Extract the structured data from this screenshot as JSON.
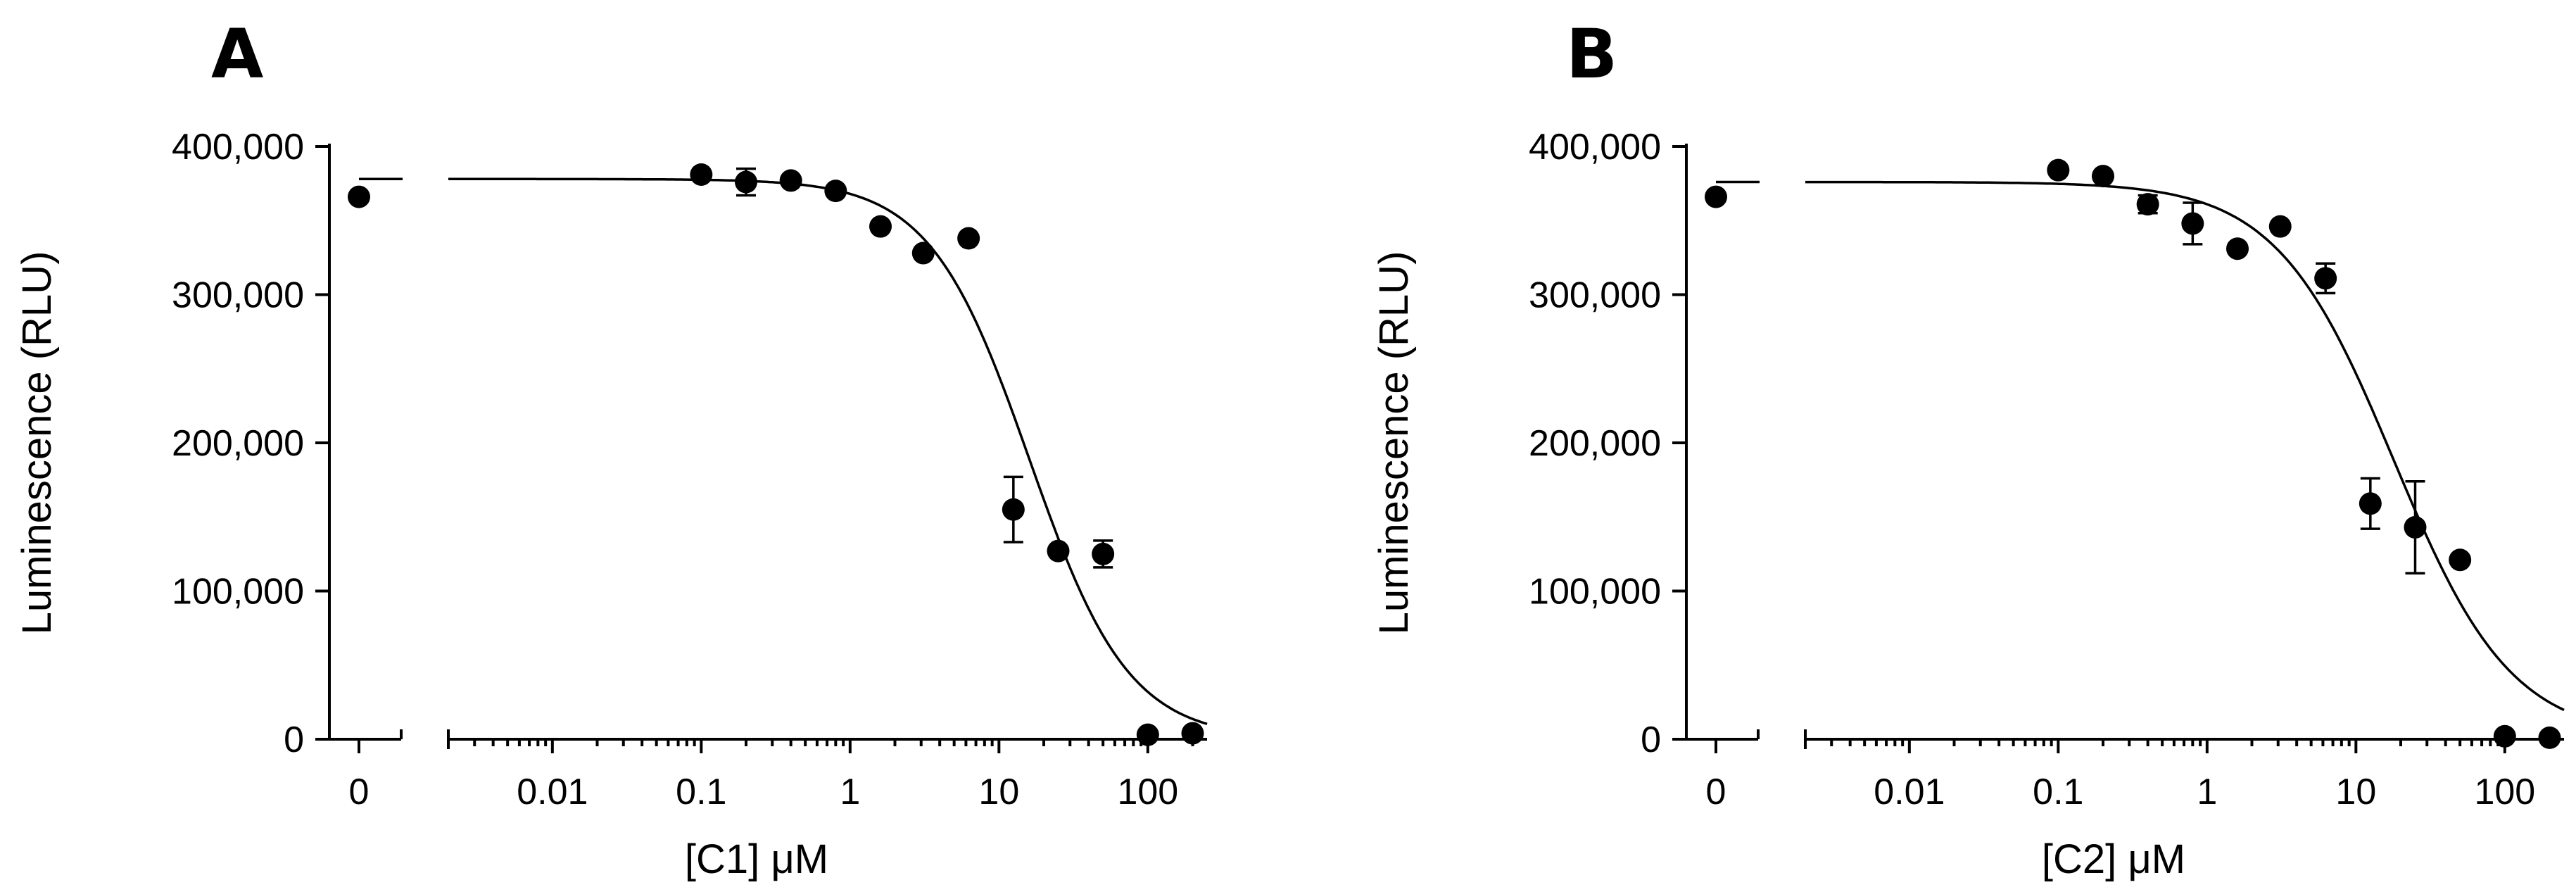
{
  "chart_data": [
    {
      "panel": "A",
      "type": "scatter",
      "title": "",
      "xlabel": "[C1] μM",
      "ylabel": "Luminescence (RLU)",
      "xscale": "log",
      "xlim": [
        0.002,
        250
      ],
      "ylim": [
        0,
        400000
      ],
      "yticks": [
        0,
        100000,
        200000,
        300000,
        400000
      ],
      "ytick_labels": [
        "0",
        "100,000",
        "200,000",
        "300,000",
        "400,000"
      ],
      "xticks": [
        0.01,
        0.1,
        1,
        10,
        100
      ],
      "xtick_labels": [
        "0.01",
        "0.1",
        "1",
        "10",
        "100"
      ],
      "zero_label": "0",
      "control": {
        "x": 0,
        "y": 366000,
        "top": 378000
      },
      "points": [
        {
          "x": 0.1,
          "y": 381000,
          "err": 0
        },
        {
          "x": 0.2,
          "y": 376000,
          "err": 9000
        },
        {
          "x": 0.4,
          "y": 377000,
          "err": 0
        },
        {
          "x": 0.8,
          "y": 370000,
          "err": 0
        },
        {
          "x": 1.6,
          "y": 346000,
          "err": 0
        },
        {
          "x": 3.1,
          "y": 328000,
          "err": 0
        },
        {
          "x": 6.25,
          "y": 338000,
          "err": 0
        },
        {
          "x": 12.5,
          "y": 155000,
          "err": 22000
        },
        {
          "x": 25,
          "y": 127000,
          "err": 0
        },
        {
          "x": 50,
          "y": 125000,
          "err": 9000
        },
        {
          "x": 100,
          "y": 3000,
          "err": 0
        },
        {
          "x": 200,
          "y": 4000,
          "err": 0
        }
      ],
      "fit": {
        "top": 378000,
        "bottom": 0,
        "ic50": 16,
        "hill": 1.3
      }
    },
    {
      "panel": "B",
      "type": "scatter",
      "title": "",
      "xlabel": "[C2] μM",
      "ylabel": "Luminescence (RLU)",
      "xscale": "log",
      "xlim": [
        0.002,
        250
      ],
      "ylim": [
        0,
        400000
      ],
      "yticks": [
        0,
        100000,
        200000,
        300000,
        400000
      ],
      "ytick_labels": [
        "0",
        "100,000",
        "200,000",
        "300,000",
        "400,000"
      ],
      "xticks": [
        0.01,
        0.1,
        1,
        10,
        100
      ],
      "xtick_labels": [
        "0.01",
        "0.1",
        "1",
        "10",
        "100"
      ],
      "zero_label": "0",
      "control": {
        "x": 0,
        "y": 366000,
        "top": 376000
      },
      "points": [
        {
          "x": 0.1,
          "y": 384000,
          "err": 0
        },
        {
          "x": 0.2,
          "y": 380000,
          "err": 0
        },
        {
          "x": 0.4,
          "y": 361000,
          "err": 6000
        },
        {
          "x": 0.8,
          "y": 348000,
          "err": 14000
        },
        {
          "x": 1.6,
          "y": 331000,
          "err": 0
        },
        {
          "x": 3.1,
          "y": 346000,
          "err": 0
        },
        {
          "x": 6.25,
          "y": 311000,
          "err": 10000
        },
        {
          "x": 12.5,
          "y": 159000,
          "err": 17000
        },
        {
          "x": 25,
          "y": 143000,
          "err": 31000
        },
        {
          "x": 50,
          "y": 121000,
          "err": 0
        },
        {
          "x": 100,
          "y": 2000,
          "err": 0
        },
        {
          "x": 200,
          "y": 1000,
          "err": 0
        }
      ],
      "fit": {
        "top": 376000,
        "bottom": 0,
        "ic50": 18,
        "hill": 1.1
      }
    }
  ]
}
